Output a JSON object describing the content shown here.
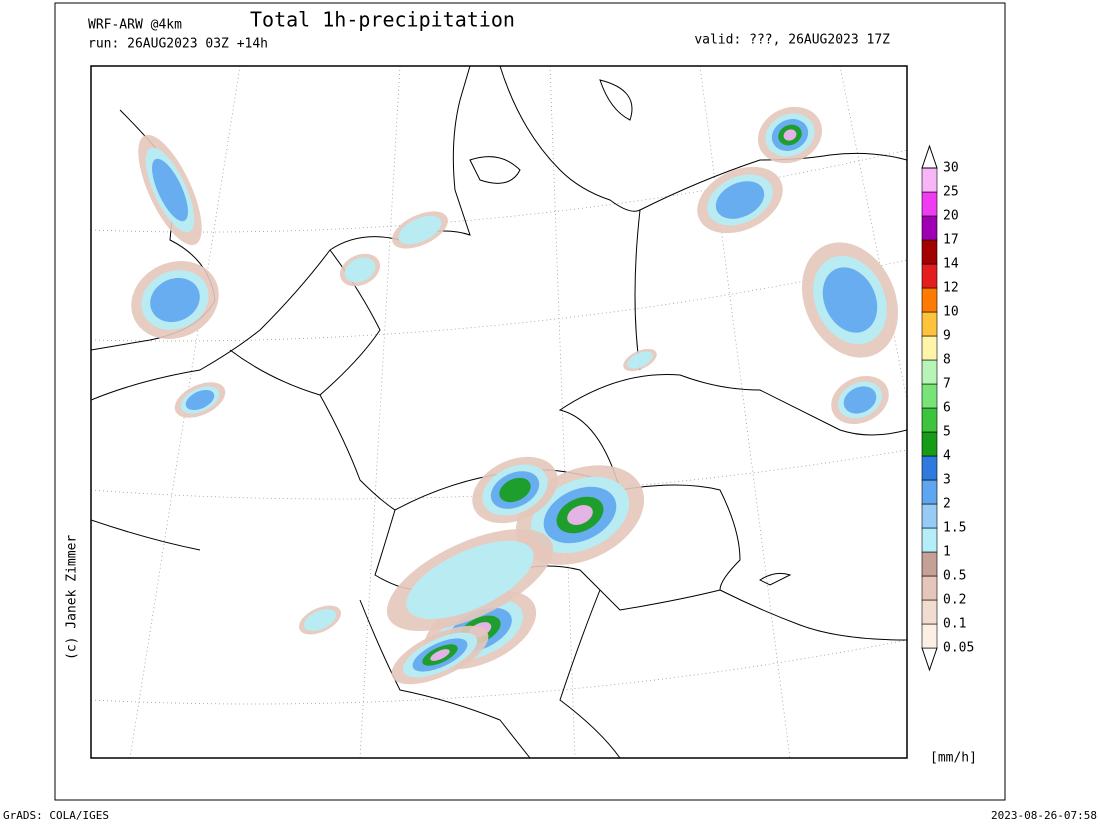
{
  "header": {
    "model": "WRF-ARW @4km",
    "run": "run: 26AUG2023 03Z +14h",
    "title": "Total 1h-precipitation",
    "valid": "valid: ???, 26AUG2023 17Z"
  },
  "credit": "(c) Janek Zimmer",
  "colorbar": {
    "unit": "[mm/h]",
    "levels": [
      0.05,
      0.1,
      0.2,
      0.5,
      1,
      1.5,
      2,
      3,
      4,
      5,
      6,
      7,
      8,
      9,
      10,
      12,
      14,
      17,
      20,
      25,
      30
    ],
    "colors": [
      "#ffffff",
      "#fcefe4",
      "#f2dcd0",
      "#e4c6ba",
      "#c4a095",
      "#b4eef8",
      "#96cbf5",
      "#5ea6ef",
      "#2f7ade",
      "#169c16",
      "#3cc43c",
      "#78e478",
      "#b6f5b6",
      "#fff4a8",
      "#ffc23c",
      "#ff7a00",
      "#e41e1e",
      "#a40000",
      "#a000b4",
      "#f03cf0",
      "#f8b6f8",
      "#ffffff"
    ]
  },
  "footer": {
    "left": "GrADS: COLA/IGES",
    "right": "2023-08-26-07:58"
  }
}
